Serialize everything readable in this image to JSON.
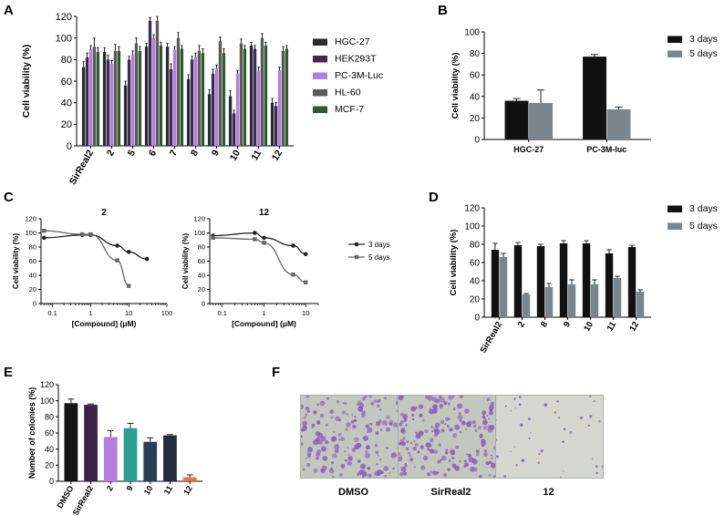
{
  "figure": {
    "panel_letters": [
      "A",
      "B",
      "C",
      "D",
      "E",
      "F"
    ],
    "colors": {
      "HGC-27": "#2b2b38",
      "HEK293T": "#3d2b4f",
      "PC-3M-Luc": "#b57edc",
      "HL-60": "#5a5a5a",
      "MCF-7": "#2e5a2e",
      "3 days": "#111111",
      "5 days": "#7b868c",
      "colony_stain": "#8a5fc0"
    }
  },
  "chart_data": [
    {
      "id": "A",
      "type": "bar",
      "title": "",
      "xlabel": "",
      "ylabel": "Cell viability (%)",
      "ylim": [
        0,
        120
      ],
      "yticks": [
        0,
        20,
        40,
        60,
        80,
        100,
        120
      ],
      "categories": [
        "SirReal2",
        "2",
        "5",
        "6",
        "7",
        "8",
        "9",
        "10",
        "11",
        "12"
      ],
      "series": [
        {
          "name": "HGC-27",
          "values": [
            73,
            87,
            56,
            92,
            92,
            62,
            48,
            46,
            93,
            40
          ],
          "errors": [
            5,
            4,
            4,
            3,
            3,
            4,
            4,
            5,
            3,
            4
          ]
        },
        {
          "name": "HEK293T",
          "values": [
            82,
            80,
            80,
            116,
            71,
            80,
            67,
            30,
            90,
            37
          ],
          "errors": [
            4,
            4,
            3,
            3,
            5,
            3,
            4,
            3,
            3,
            3
          ]
        },
        {
          "name": "PC-3M-Luc",
          "values": [
            90,
            76,
            85,
            100,
            89,
            83,
            72,
            67,
            70,
            70
          ],
          "errors": [
            3,
            3,
            3,
            3,
            3,
            3,
            3,
            3,
            3,
            3
          ]
        },
        {
          "name": "HL-60",
          "values": [
            92,
            88,
            95,
            116,
            100,
            88,
            97,
            95,
            100,
            88
          ],
          "errors": [
            8,
            6,
            5,
            4,
            5,
            5,
            4,
            4,
            4,
            4
          ]
        },
        {
          "name": "MCF-7",
          "values": [
            87,
            88,
            88,
            93,
            90,
            86,
            86,
            90,
            93,
            90
          ],
          "errors": [
            4,
            4,
            4,
            3,
            3,
            4,
            4,
            3,
            3,
            3
          ]
        }
      ],
      "legend_position": "right"
    },
    {
      "id": "B",
      "type": "bar",
      "title": "",
      "xlabel": "",
      "ylabel": "Cell viability (%)",
      "ylim": [
        0,
        100
      ],
      "yticks": [
        0,
        20,
        40,
        60,
        80,
        100
      ],
      "categories": [
        "HGC-27",
        "PC-3M-luc"
      ],
      "series": [
        {
          "name": "3 days",
          "values": [
            36,
            77
          ],
          "errors": [
            2,
            2
          ]
        },
        {
          "name": "5 days",
          "values": [
            34,
            28
          ],
          "errors": [
            12,
            2
          ]
        }
      ],
      "legend_position": "right"
    },
    {
      "id": "C1",
      "type": "line",
      "title": "2",
      "xlabel": "[Compound] (μM)",
      "ylabel": "Cell viability (%)",
      "xscale": "log",
      "xlim": [
        0.05,
        100
      ],
      "xticks": [
        0.1,
        1,
        10,
        100
      ],
      "ylim": [
        0,
        120
      ],
      "yticks": [
        0,
        20,
        40,
        60,
        80,
        100,
        120
      ],
      "series": [
        {
          "name": "3 days",
          "x": [
            0.06,
            0.6,
            1,
            5,
            10,
            30
          ],
          "y": [
            93,
            97,
            97,
            82,
            73,
            63
          ]
        },
        {
          "name": "5 days",
          "x": [
            0.06,
            0.6,
            1,
            5,
            10
          ],
          "y": [
            103,
            98,
            98,
            61,
            25
          ]
        }
      ]
    },
    {
      "id": "C2",
      "type": "line",
      "title": "12",
      "xlabel": "[Compound] (μM)",
      "ylabel": "Cell viability (%)",
      "xscale": "log",
      "xlim": [
        0.05,
        20
      ],
      "xticks": [
        0.1,
        1,
        10
      ],
      "ylim": [
        0,
        120
      ],
      "yticks": [
        0,
        20,
        40,
        60,
        80,
        100,
        120
      ],
      "series": [
        {
          "name": "3 days",
          "x": [
            0.06,
            0.6,
            1,
            5,
            10
          ],
          "y": [
            96,
            100,
            93,
            82,
            70
          ]
        },
        {
          "name": "5 days",
          "x": [
            0.06,
            0.6,
            1,
            5,
            10
          ],
          "y": [
            93,
            91,
            86,
            41,
            30
          ]
        }
      ],
      "legend": [
        "3 days",
        "5 days"
      ],
      "legend_position": "right"
    },
    {
      "id": "D",
      "type": "bar",
      "title": "",
      "xlabel": "",
      "ylabel": "Cell viability (%)",
      "ylim": [
        0,
        120
      ],
      "yticks": [
        0,
        20,
        40,
        60,
        80,
        100,
        120
      ],
      "categories": [
        "SirReal2",
        "2",
        "8",
        "9",
        "10",
        "11",
        "12"
      ],
      "series": [
        {
          "name": "3 days",
          "values": [
            74,
            79,
            78,
            81,
            81,
            70,
            77
          ],
          "errors": [
            7,
            3,
            2,
            3,
            3,
            4,
            2
          ]
        },
        {
          "name": "5 days",
          "values": [
            66,
            25,
            33,
            36,
            36,
            43,
            28
          ],
          "errors": [
            4,
            1,
            4,
            5,
            5,
            2,
            2
          ]
        }
      ],
      "legend_position": "right"
    },
    {
      "id": "E",
      "type": "bar",
      "title": "",
      "xlabel": "",
      "ylabel": "Number of colonies (%)",
      "ylim": [
        0,
        120
      ],
      "yticks": [
        0,
        20,
        40,
        60,
        80,
        100,
        120
      ],
      "categories": [
        "DMSO",
        "SirReal2",
        "2",
        "9",
        "10",
        "11",
        "12"
      ],
      "values": [
        97,
        95,
        55,
        66,
        49,
        57,
        5
      ],
      "errors": [
        5,
        1,
        8,
        6,
        5,
        1,
        3
      ],
      "colors": [
        "#141414",
        "#3b2447",
        "#b57edc",
        "#2e9e93",
        "#2a3f55",
        "#262c40",
        "#e8743b"
      ]
    }
  ],
  "panel_f": {
    "labels": [
      "DMSO",
      "SirReal2",
      "12"
    ],
    "colony_density": [
      170,
      190,
      40
    ]
  }
}
